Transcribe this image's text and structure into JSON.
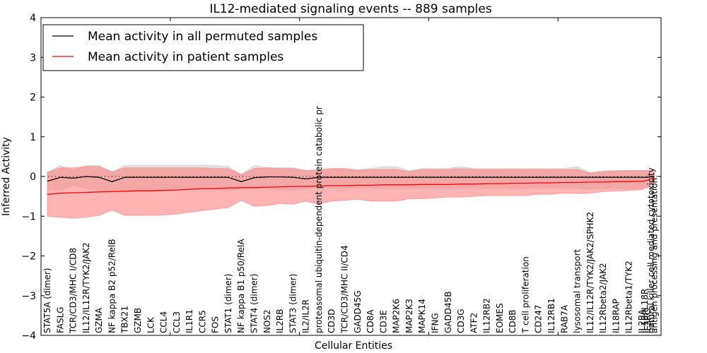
{
  "chart_data": {
    "type": "line",
    "title": "IL12-mediated signaling events -- 889 samples",
    "xlabel": "Cellular Entities",
    "ylabel": "Inferred Activity",
    "ylim": [
      -4,
      4
    ],
    "yticks": [
      -4,
      -3,
      -2,
      -1,
      0,
      1,
      2,
      3,
      4
    ],
    "ytick_labels": [
      "−4",
      "−3",
      "−2",
      "−1",
      "0",
      "1",
      "2",
      "3",
      "4"
    ],
    "grid": false,
    "zero_reference_line": "dotted",
    "legend": {
      "placement": "top-left",
      "entries": [
        {
          "label": "Mean activity in all permuted samples",
          "color": "#000000"
        },
        {
          "label": "Mean activity in patient samples",
          "color": "#ff0000"
        }
      ]
    },
    "band_colors": {
      "permuted_band": "#c8c8c8",
      "patient_band": "#ff8080"
    },
    "categories": [
      "STAT5A (dimer)",
      "FASLG",
      "TCR/CD3/MHC I/CD8",
      "IL12/IL12R/TYK2/JAK2",
      "GZMA",
      "NF kappa B2 p52/RelB",
      "TBX21",
      "GZMB",
      "LCK",
      "CCL4",
      "CCL3",
      "IL1R1",
      "CCR5",
      "FOS",
      "STAT1 (dimer)",
      "NF kappa B1 p50/RelA",
      "STAT4 (dimer)",
      "NOS2",
      "IL2RB",
      "STAT3 (dimer)",
      "IL2/IL2R",
      "proteasomal ubiquitin-dependent protein catabolic pr",
      "CD3D",
      "TCR/CD3/MHC II/CD4",
      "GADD45G",
      "CD8A",
      "CD3E",
      "MAP2K6",
      "MAP2K3",
      "MAPK14",
      "IFNG",
      "GADD45B",
      "CD3G",
      "ATF2",
      "IL12RB2",
      "EOMES",
      "CD8B",
      "T cell proliferation",
      "CD247",
      "IL12RB1",
      "RAB7A",
      "lysosomal transport",
      "IL12/IL12R/TYK2/JAK2/SPHK2",
      "IL12Rbeta2/JAK2",
      "IL18RAP",
      "IL12Rbeta1/TYK2",
      "IL2RA",
      "IL18/IL18R",
      "IL2RG",
      "natural killer cell mediated cytotoxicity",
      "antigen processing and presentation"
    ],
    "series": [
      {
        "name": "Mean activity in all permuted samples",
        "color": "#000000",
        "values": [
          -0.12,
          -0.02,
          -0.04,
          0.0,
          -0.02,
          -0.13,
          -0.02,
          -0.02,
          -0.02,
          -0.02,
          -0.02,
          -0.02,
          -0.02,
          -0.02,
          -0.02,
          -0.13,
          -0.03,
          -0.01,
          -0.01,
          -0.02,
          -0.06,
          -0.02,
          -0.02,
          -0.02,
          -0.02,
          -0.02,
          -0.02,
          -0.02,
          -0.02,
          -0.02,
          -0.02,
          -0.02,
          -0.02,
          -0.02,
          -0.02,
          -0.02,
          -0.02,
          -0.02,
          -0.02,
          -0.02,
          -0.02,
          -0.02,
          -0.02,
          -0.02,
          -0.02,
          -0.02,
          -0.02,
          -0.02,
          -0.02,
          0.0,
          0.0
        ],
        "band_upper": [
          0.1,
          0.28,
          0.15,
          0.28,
          0.28,
          0.1,
          0.28,
          0.28,
          0.28,
          0.28,
          0.28,
          0.28,
          0.28,
          0.28,
          0.25,
          0.05,
          0.28,
          0.22,
          0.22,
          0.22,
          0.15,
          0.2,
          0.2,
          0.2,
          0.18,
          0.2,
          0.25,
          0.25,
          0.15,
          0.2,
          0.2,
          0.2,
          0.25,
          0.2,
          0.2,
          0.2,
          0.2,
          0.2,
          0.2,
          0.2,
          0.2,
          0.25,
          0.1,
          0.15,
          0.15,
          0.15,
          0.15,
          0.15,
          0.15,
          0.1,
          0.1
        ],
        "band_lower": [
          -0.33,
          -0.35,
          -0.22,
          -0.3,
          -0.35,
          -0.35,
          -0.35,
          -0.35,
          -0.35,
          -0.35,
          -0.35,
          -0.33,
          -0.33,
          -0.33,
          -0.35,
          -0.3,
          -0.3,
          -0.3,
          -0.33,
          -0.33,
          -0.3,
          -0.25,
          -0.3,
          -0.3,
          -0.3,
          -0.3,
          -0.3,
          -0.3,
          -0.3,
          -0.3,
          -0.3,
          -0.3,
          -0.3,
          -0.3,
          -0.3,
          -0.3,
          -0.3,
          -0.3,
          -0.3,
          -0.3,
          -0.3,
          -0.3,
          -0.32,
          -0.3,
          -0.3,
          -0.3,
          -0.3,
          -0.25,
          -0.25,
          -0.15,
          -0.15
        ]
      },
      {
        "name": "Mean activity in patient samples",
        "color": "#ff0000",
        "values": [
          -0.45,
          -0.42,
          -0.41,
          -0.4,
          -0.39,
          -0.38,
          -0.37,
          -0.36,
          -0.36,
          -0.35,
          -0.34,
          -0.32,
          -0.31,
          -0.3,
          -0.29,
          -0.28,
          -0.28,
          -0.27,
          -0.26,
          -0.25,
          -0.25,
          -0.24,
          -0.23,
          -0.23,
          -0.22,
          -0.22,
          -0.21,
          -0.21,
          -0.21,
          -0.2,
          -0.2,
          -0.2,
          -0.19,
          -0.19,
          -0.18,
          -0.18,
          -0.17,
          -0.17,
          -0.16,
          -0.16,
          -0.15,
          -0.15,
          -0.14,
          -0.14,
          -0.13,
          -0.13,
          -0.12,
          -0.11,
          -0.09,
          -0.06,
          -0.02
        ],
        "band_upper": [
          0.1,
          0.22,
          0.22,
          0.25,
          0.25,
          0.12,
          0.22,
          0.22,
          0.22,
          0.22,
          0.22,
          0.22,
          0.22,
          0.2,
          0.2,
          0.05,
          0.2,
          0.22,
          0.2,
          0.2,
          0.15,
          0.15,
          0.2,
          0.2,
          0.15,
          0.18,
          0.18,
          0.18,
          0.12,
          0.18,
          0.18,
          0.18,
          0.2,
          0.18,
          0.18,
          0.18,
          0.18,
          0.18,
          0.18,
          0.18,
          0.18,
          0.18,
          0.08,
          0.12,
          0.14,
          0.15,
          0.15,
          0.15,
          0.15,
          0.15,
          0.12
        ],
        "band_lower": [
          -1.0,
          -1.03,
          -1.05,
          -1.03,
          -0.98,
          -0.85,
          -0.98,
          -0.98,
          -0.98,
          -0.97,
          -0.95,
          -0.9,
          -0.86,
          -0.82,
          -0.78,
          -0.6,
          -0.75,
          -0.73,
          -0.68,
          -0.7,
          -0.62,
          -0.7,
          -0.62,
          -0.6,
          -0.57,
          -0.62,
          -0.62,
          -0.62,
          -0.56,
          -0.56,
          -0.54,
          -0.52,
          -0.52,
          -0.5,
          -0.48,
          -0.48,
          -0.48,
          -0.48,
          -0.45,
          -0.45,
          -0.42,
          -0.43,
          -0.42,
          -0.38,
          -0.37,
          -0.35,
          -0.33,
          -0.3,
          -0.28,
          -0.2,
          -0.15
        ]
      }
    ]
  }
}
